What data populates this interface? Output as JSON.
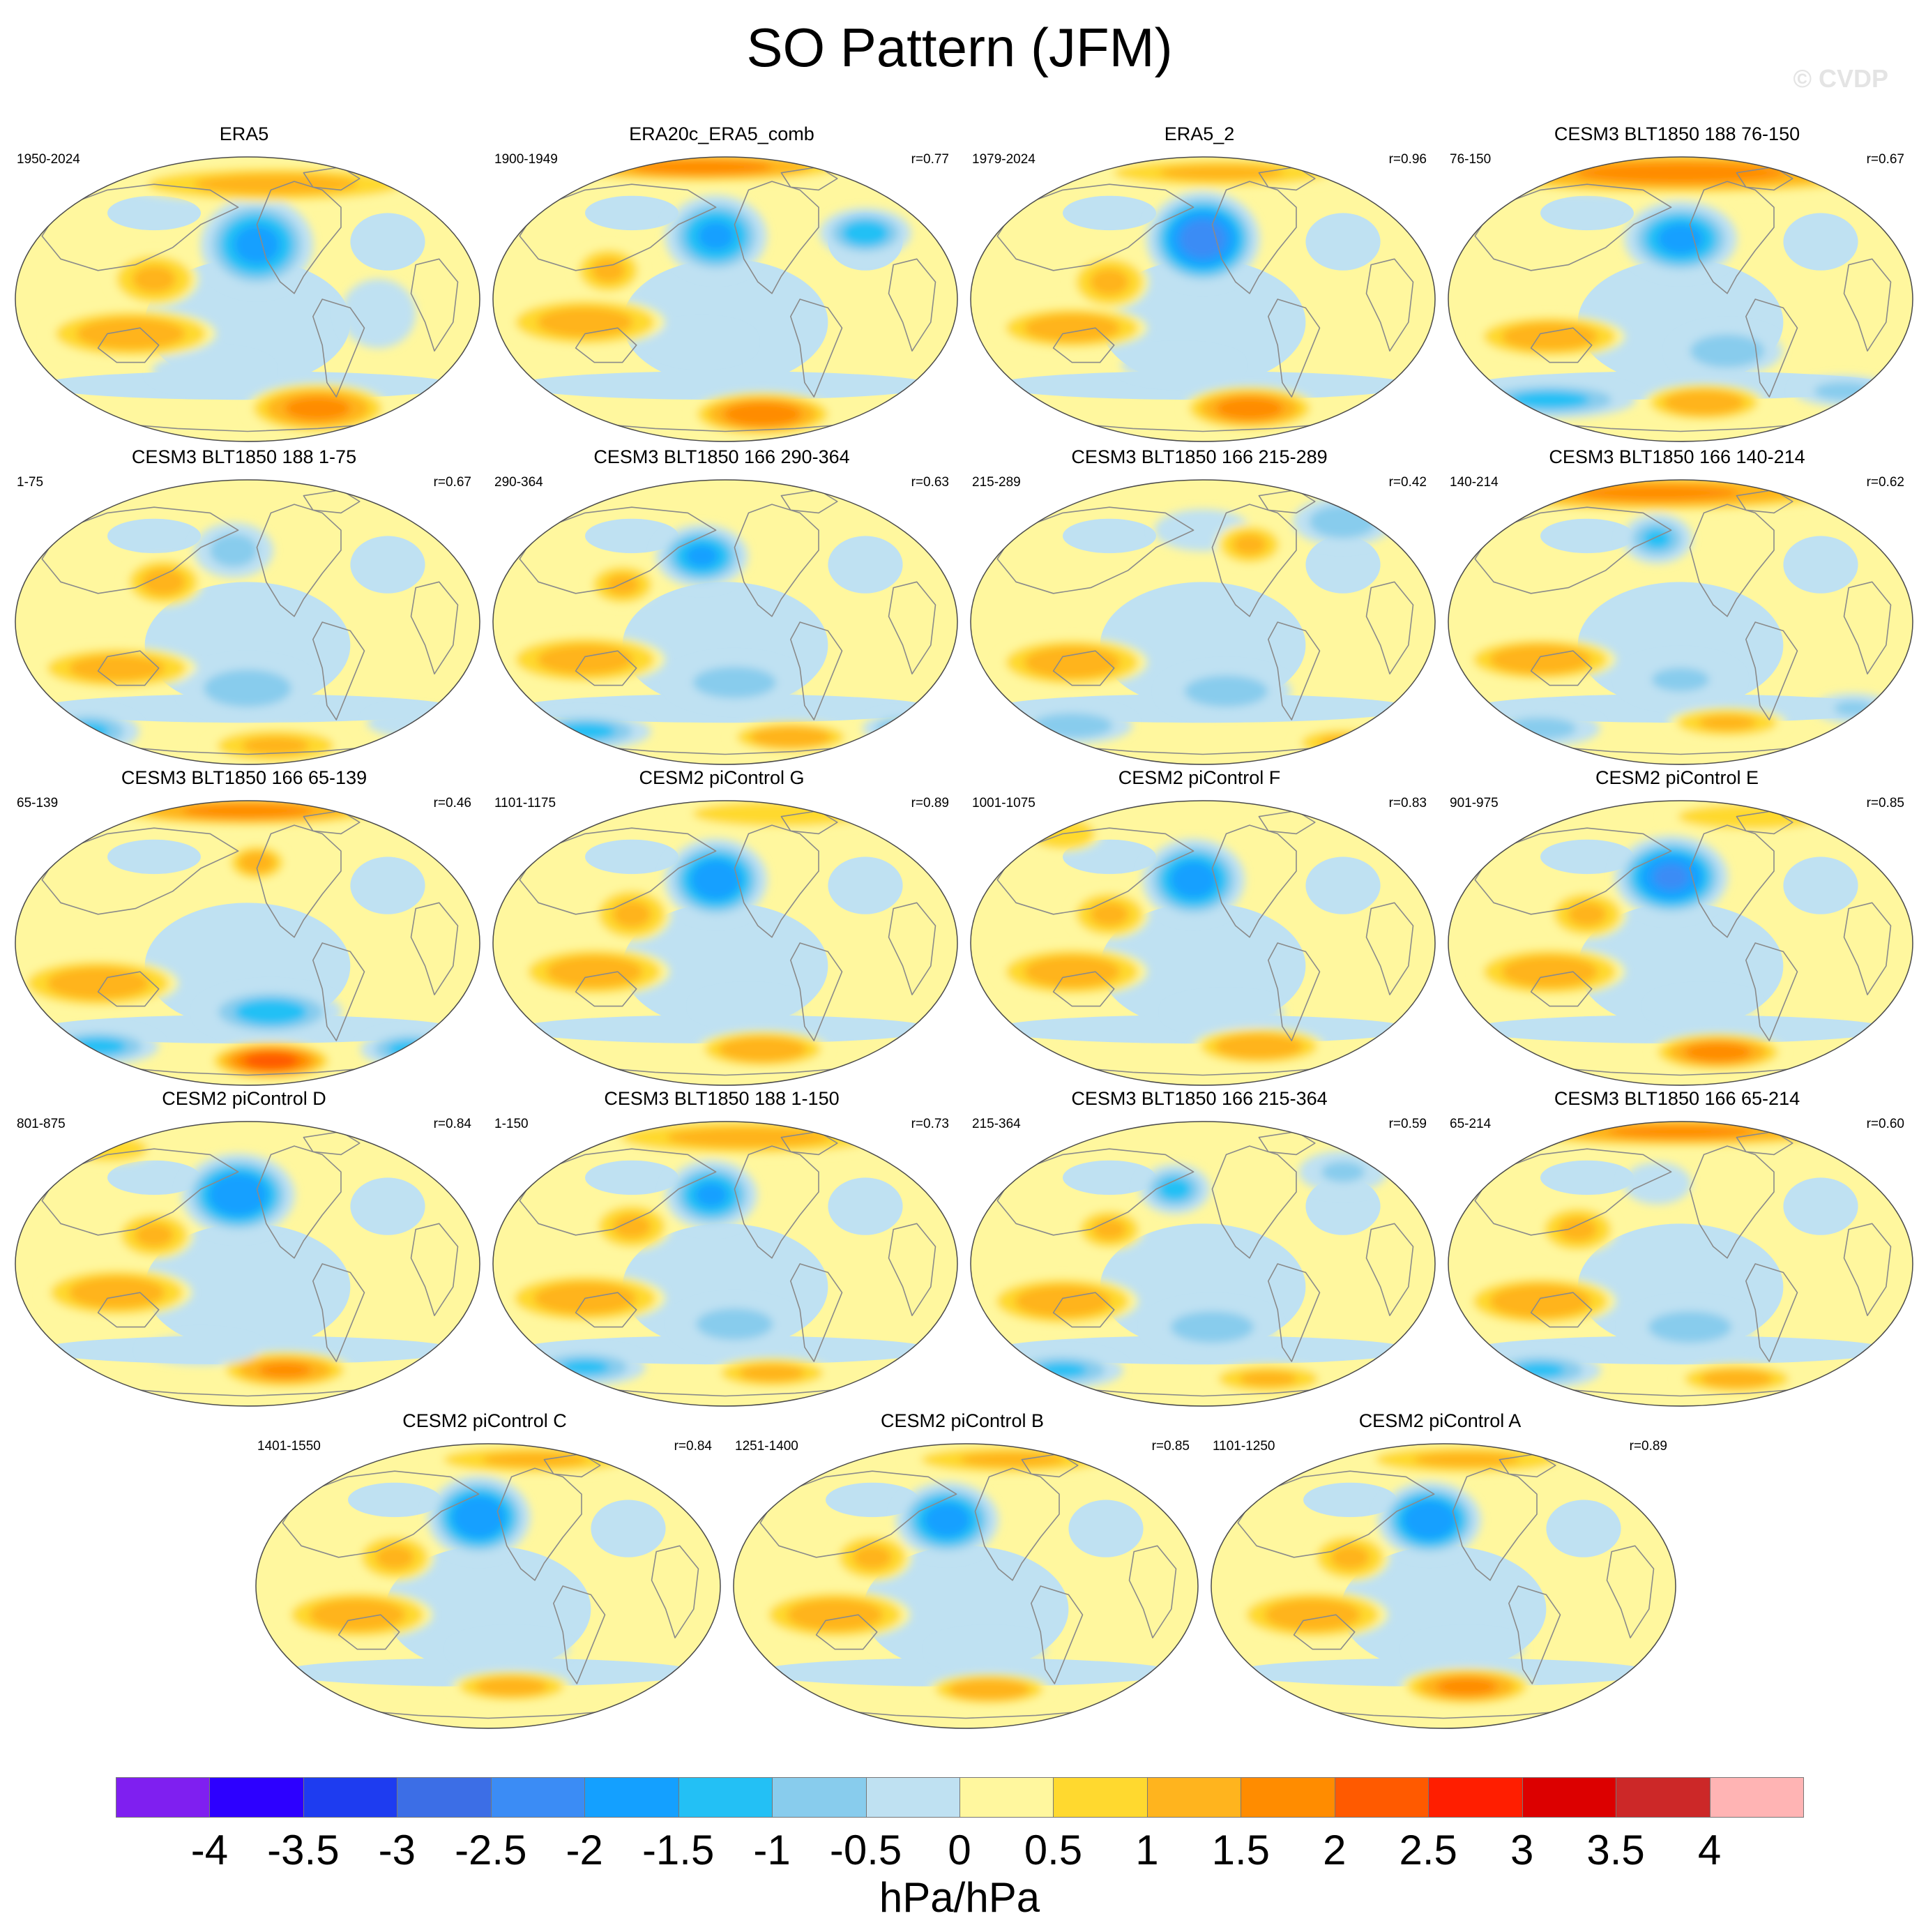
{
  "title": "SO Pattern (JFM)",
  "watermark": "© CVDP",
  "units": "hPa/hPa",
  "colors": {
    "land": "#8a8a8a",
    "ocean_border": "#4a4a4a",
    "levels": [
      "#7f1ff0",
      "#2d00ff",
      "#1e3cf0",
      "#3c6ee6",
      "#3b8cf5",
      "#14a0ff",
      "#23c0f5",
      "#88cced",
      "#bfe1f2",
      "#fff79e",
      "#ffd92f",
      "#ffb41e",
      "#ff8c00",
      "#ff5a00",
      "#ff1e00",
      "#dc0000",
      "#cc2828",
      "#ffb4b4"
    ]
  },
  "colorbar": {
    "labels": [
      "-4",
      "-3.5",
      "-3",
      "-2.5",
      "-2",
      "-1.5",
      "-1",
      "-0.5",
      "0",
      "0.5",
      "1",
      "1.5",
      "2",
      "2.5",
      "3",
      "3.5",
      "4"
    ]
  },
  "panels": [
    {
      "title": "ERA5",
      "years": "1950-2024",
      "corr": "",
      "features": [
        [
          0.52,
          0.31,
          0.11,
          0.15,
          -2.1
        ],
        [
          0.25,
          0.62,
          0.17,
          0.08,
          1.3
        ],
        [
          0.65,
          0.88,
          0.14,
          0.08,
          1.6
        ],
        [
          0.3,
          0.43,
          0.09,
          0.09,
          1.0
        ],
        [
          0.56,
          0.1,
          0.3,
          0.06,
          1.1
        ],
        [
          0.42,
          0.75,
          0.12,
          0.06,
          -0.9
        ],
        [
          0.78,
          0.55,
          0.08,
          0.12,
          -0.6
        ]
      ]
    },
    {
      "title": "ERA20c_ERA5_comb",
      "years": "1900-1949",
      "corr": "r=0.77",
      "features": [
        [
          0.48,
          0.28,
          0.1,
          0.13,
          -2.0
        ],
        [
          0.8,
          0.27,
          0.09,
          0.08,
          -1.7
        ],
        [
          0.45,
          0.04,
          0.3,
          0.05,
          1.6
        ],
        [
          0.2,
          0.58,
          0.16,
          0.08,
          1.2
        ],
        [
          0.58,
          0.9,
          0.14,
          0.07,
          1.8
        ],
        [
          0.45,
          0.65,
          0.1,
          0.06,
          -0.9
        ],
        [
          0.25,
          0.4,
          0.07,
          0.08,
          1.0
        ]
      ]
    },
    {
      "title": "ERA5_2",
      "years": "1979-2024",
      "corr": "r=0.96",
      "features": [
        [
          0.5,
          0.29,
          0.11,
          0.15,
          -2.7
        ],
        [
          0.22,
          0.6,
          0.15,
          0.07,
          1.3
        ],
        [
          0.6,
          0.88,
          0.13,
          0.07,
          1.7
        ],
        [
          0.3,
          0.44,
          0.08,
          0.09,
          1.0
        ],
        [
          0.54,
          0.06,
          0.26,
          0.05,
          1.0
        ],
        [
          0.45,
          0.73,
          0.12,
          0.05,
          -0.9
        ]
      ]
    },
    {
      "title": "CESM3 BLT1850 188 76-150",
      "years": "76-150",
      "corr": "r=0.67",
      "features": [
        [
          0.5,
          0.29,
          0.11,
          0.12,
          -2.1
        ],
        [
          0.5,
          0.06,
          0.45,
          0.07,
          1.6
        ],
        [
          0.22,
          0.63,
          0.15,
          0.07,
          1.3
        ],
        [
          0.6,
          0.68,
          0.11,
          0.08,
          -1.4
        ],
        [
          0.22,
          0.85,
          0.17,
          0.06,
          -1.6
        ],
        [
          0.55,
          0.86,
          0.12,
          0.06,
          1.4
        ],
        [
          0.85,
          0.82,
          0.1,
          0.05,
          -1.2
        ]
      ]
    },
    {
      "title": "CESM3 BLT1850 188 1-75",
      "years": "1-75",
      "corr": "r=0.67",
      "features": [
        [
          0.47,
          0.25,
          0.08,
          0.09,
          -1.2
        ],
        [
          0.32,
          0.36,
          0.08,
          0.08,
          1.1
        ],
        [
          0.22,
          0.66,
          0.16,
          0.07,
          1.2
        ],
        [
          0.5,
          0.73,
          0.13,
          0.09,
          -1.4
        ],
        [
          0.16,
          0.88,
          0.1,
          0.07,
          -1.5
        ],
        [
          0.56,
          0.93,
          0.14,
          0.06,
          1.0
        ],
        [
          0.86,
          0.85,
          0.1,
          0.05,
          -0.9
        ]
      ]
    },
    {
      "title": "CESM3 BLT1850 166 290-364",
      "years": "290-364",
      "corr": "r=0.63",
      "features": [
        [
          0.45,
          0.27,
          0.09,
          0.1,
          -2.0
        ],
        [
          0.28,
          0.37,
          0.07,
          0.07,
          1.0
        ],
        [
          0.2,
          0.63,
          0.16,
          0.08,
          1.2
        ],
        [
          0.52,
          0.71,
          0.13,
          0.08,
          -1.3
        ],
        [
          0.2,
          0.88,
          0.13,
          0.06,
          -1.6
        ],
        [
          0.64,
          0.9,
          0.12,
          0.05,
          1.4
        ],
        [
          0.88,
          0.87,
          0.08,
          0.05,
          -1.4
        ]
      ]
    },
    {
      "title": "CESM3 BLT1850 166 215-289",
      "years": "215-289",
      "corr": "r=0.42",
      "features": [
        [
          0.5,
          0.18,
          0.1,
          0.07,
          -0.9
        ],
        [
          0.8,
          0.15,
          0.1,
          0.08,
          -1.4
        ],
        [
          0.22,
          0.64,
          0.15,
          0.08,
          1.3
        ],
        [
          0.55,
          0.74,
          0.13,
          0.08,
          -1.3
        ],
        [
          0.22,
          0.86,
          0.12,
          0.06,
          -1.4
        ],
        [
          0.6,
          0.23,
          0.07,
          0.07,
          1.0
        ],
        [
          0.8,
          0.92,
          0.1,
          0.05,
          1.0
        ]
      ]
    },
    {
      "title": "CESM3 BLT1850 166 140-214",
      "years": "140-214",
      "corr": "r=0.62",
      "features": [
        [
          0.45,
          0.21,
          0.07,
          0.08,
          -1.5
        ],
        [
          0.45,
          0.05,
          0.4,
          0.06,
          1.5
        ],
        [
          0.2,
          0.63,
          0.15,
          0.07,
          1.4
        ],
        [
          0.5,
          0.7,
          0.12,
          0.08,
          -1.0
        ],
        [
          0.2,
          0.87,
          0.12,
          0.06,
          -1.2
        ],
        [
          0.6,
          0.85,
          0.12,
          0.05,
          1.0
        ],
        [
          0.87,
          0.8,
          0.08,
          0.05,
          -1.0
        ]
      ]
    },
    {
      "title": "CESM3 BLT1850 166 65-139",
      "years": "65-139",
      "corr": "r=0.46",
      "features": [
        [
          0.5,
          0.04,
          0.28,
          0.05,
          1.6
        ],
        [
          0.52,
          0.22,
          0.06,
          0.06,
          1.2
        ],
        [
          0.18,
          0.64,
          0.16,
          0.08,
          1.3
        ],
        [
          0.55,
          0.74,
          0.14,
          0.08,
          -1.7
        ],
        [
          0.18,
          0.86,
          0.12,
          0.06,
          -1.6
        ],
        [
          0.55,
          0.91,
          0.12,
          0.06,
          2.2
        ],
        [
          0.85,
          0.87,
          0.1,
          0.06,
          -1.6
        ]
      ]
    },
    {
      "title": "CESM2 piControl G",
      "years": "1101-1175",
      "corr": "r=0.89",
      "features": [
        [
          0.48,
          0.28,
          0.1,
          0.13,
          -2.3
        ],
        [
          0.22,
          0.6,
          0.15,
          0.08,
          1.3
        ],
        [
          0.58,
          0.87,
          0.13,
          0.06,
          1.4
        ],
        [
          0.3,
          0.4,
          0.08,
          0.09,
          1.0
        ],
        [
          0.62,
          0.05,
          0.22,
          0.05,
          0.9
        ],
        [
          0.55,
          0.72,
          0.11,
          0.05,
          -0.8
        ]
      ]
    },
    {
      "title": "CESM2 piControl F",
      "years": "1001-1075",
      "corr": "r=0.83",
      "features": [
        [
          0.48,
          0.28,
          0.1,
          0.13,
          -2.2
        ],
        [
          0.22,
          0.6,
          0.15,
          0.08,
          1.3
        ],
        [
          0.62,
          0.86,
          0.13,
          0.06,
          1.4
        ],
        [
          0.3,
          0.4,
          0.08,
          0.08,
          1.0
        ],
        [
          0.55,
          0.74,
          0.12,
          0.05,
          -0.9
        ],
        [
          0.2,
          0.12,
          0.08,
          0.06,
          0.9
        ]
      ]
    },
    {
      "title": "CESM2 piControl E",
      "years": "901-975",
      "corr": "r=0.85",
      "features": [
        [
          0.48,
          0.27,
          0.11,
          0.13,
          -2.5
        ],
        [
          0.22,
          0.6,
          0.15,
          0.08,
          1.3
        ],
        [
          0.58,
          0.88,
          0.13,
          0.06,
          1.7
        ],
        [
          0.3,
          0.4,
          0.08,
          0.08,
          1.0
        ],
        [
          0.65,
          0.06,
          0.18,
          0.05,
          0.9
        ],
        [
          0.55,
          0.72,
          0.11,
          0.05,
          -0.8
        ]
      ]
    },
    {
      "title": "CESM2 piControl D",
      "years": "801-875",
      "corr": "r=0.84",
      "features": [
        [
          0.48,
          0.26,
          0.11,
          0.13,
          -2.4
        ],
        [
          0.22,
          0.6,
          0.15,
          0.08,
          1.3
        ],
        [
          0.58,
          0.87,
          0.13,
          0.06,
          1.5
        ],
        [
          0.3,
          0.4,
          0.08,
          0.08,
          1.0
        ],
        [
          0.2,
          0.1,
          0.1,
          0.05,
          0.9
        ],
        [
          0.4,
          0.8,
          0.12,
          0.05,
          -0.9
        ]
      ]
    },
    {
      "title": "CESM3 BLT1850 188 1-150",
      "years": "1-150",
      "corr": "r=0.73",
      "features": [
        [
          0.47,
          0.26,
          0.09,
          0.11,
          -2.0
        ],
        [
          0.2,
          0.62,
          0.16,
          0.08,
          1.3
        ],
        [
          0.52,
          0.71,
          0.12,
          0.08,
          -1.3
        ],
        [
          0.2,
          0.86,
          0.12,
          0.06,
          -1.5
        ],
        [
          0.6,
          0.88,
          0.12,
          0.05,
          1.1
        ],
        [
          0.55,
          0.06,
          0.3,
          0.06,
          1.1
        ],
        [
          0.3,
          0.37,
          0.08,
          0.08,
          1.0
        ]
      ]
    },
    {
      "title": "CESM3 BLT1850 166 215-364",
      "years": "215-364",
      "corr": "r=0.59",
      "features": [
        [
          0.44,
          0.24,
          0.07,
          0.08,
          -1.6
        ],
        [
          0.8,
          0.18,
          0.09,
          0.07,
          -1.0
        ],
        [
          0.2,
          0.63,
          0.15,
          0.08,
          1.3
        ],
        [
          0.52,
          0.72,
          0.13,
          0.08,
          -1.3
        ],
        [
          0.2,
          0.87,
          0.12,
          0.06,
          -1.5
        ],
        [
          0.64,
          0.9,
          0.12,
          0.05,
          1.0
        ],
        [
          0.3,
          0.38,
          0.07,
          0.07,
          1.0
        ]
      ]
    },
    {
      "title": "CESM3 BLT1850 166 65-214",
      "years": "65-214",
      "corr": "r=0.60",
      "features": [
        [
          0.5,
          0.04,
          0.36,
          0.05,
          1.5
        ],
        [
          0.45,
          0.22,
          0.07,
          0.07,
          -0.9
        ],
        [
          0.2,
          0.63,
          0.15,
          0.08,
          1.4
        ],
        [
          0.52,
          0.72,
          0.13,
          0.08,
          -1.3
        ],
        [
          0.2,
          0.87,
          0.12,
          0.06,
          -1.5
        ],
        [
          0.62,
          0.9,
          0.12,
          0.05,
          1.2
        ],
        [
          0.28,
          0.38,
          0.08,
          0.08,
          1.0
        ]
      ]
    },
    {
      "title": "CESM2 piControl C",
      "years": "1401-1550",
      "corr": "r=0.84",
      "features": [
        [
          0.48,
          0.26,
          0.1,
          0.13,
          -2.4
        ],
        [
          0.22,
          0.6,
          0.15,
          0.08,
          1.3
        ],
        [
          0.55,
          0.85,
          0.12,
          0.05,
          1.2
        ],
        [
          0.3,
          0.4,
          0.08,
          0.08,
          1.0
        ],
        [
          0.6,
          0.06,
          0.22,
          0.05,
          1.0
        ],
        [
          0.55,
          0.72,
          0.12,
          0.05,
          -0.9
        ]
      ]
    },
    {
      "title": "CESM2 piControl B",
      "years": "1251-1400",
      "corr": "r=0.85",
      "features": [
        [
          0.46,
          0.27,
          0.1,
          0.12,
          -2.2
        ],
        [
          0.22,
          0.6,
          0.15,
          0.08,
          1.3
        ],
        [
          0.55,
          0.86,
          0.12,
          0.05,
          1.4
        ],
        [
          0.3,
          0.4,
          0.08,
          0.08,
          1.0
        ],
        [
          0.6,
          0.06,
          0.22,
          0.05,
          1.0
        ],
        [
          0.55,
          0.72,
          0.12,
          0.05,
          -0.8
        ]
      ]
    },
    {
      "title": "CESM2 piControl A",
      "years": "1101-1250",
      "corr": "r=0.89",
      "features": [
        [
          0.47,
          0.27,
          0.1,
          0.12,
          -2.4
        ],
        [
          0.22,
          0.6,
          0.15,
          0.08,
          1.3
        ],
        [
          0.55,
          0.85,
          0.13,
          0.06,
          1.6
        ],
        [
          0.3,
          0.4,
          0.08,
          0.08,
          1.0
        ],
        [
          0.55,
          0.06,
          0.22,
          0.05,
          1.0
        ],
        [
          0.55,
          0.72,
          0.12,
          0.05,
          -0.8
        ]
      ]
    }
  ]
}
